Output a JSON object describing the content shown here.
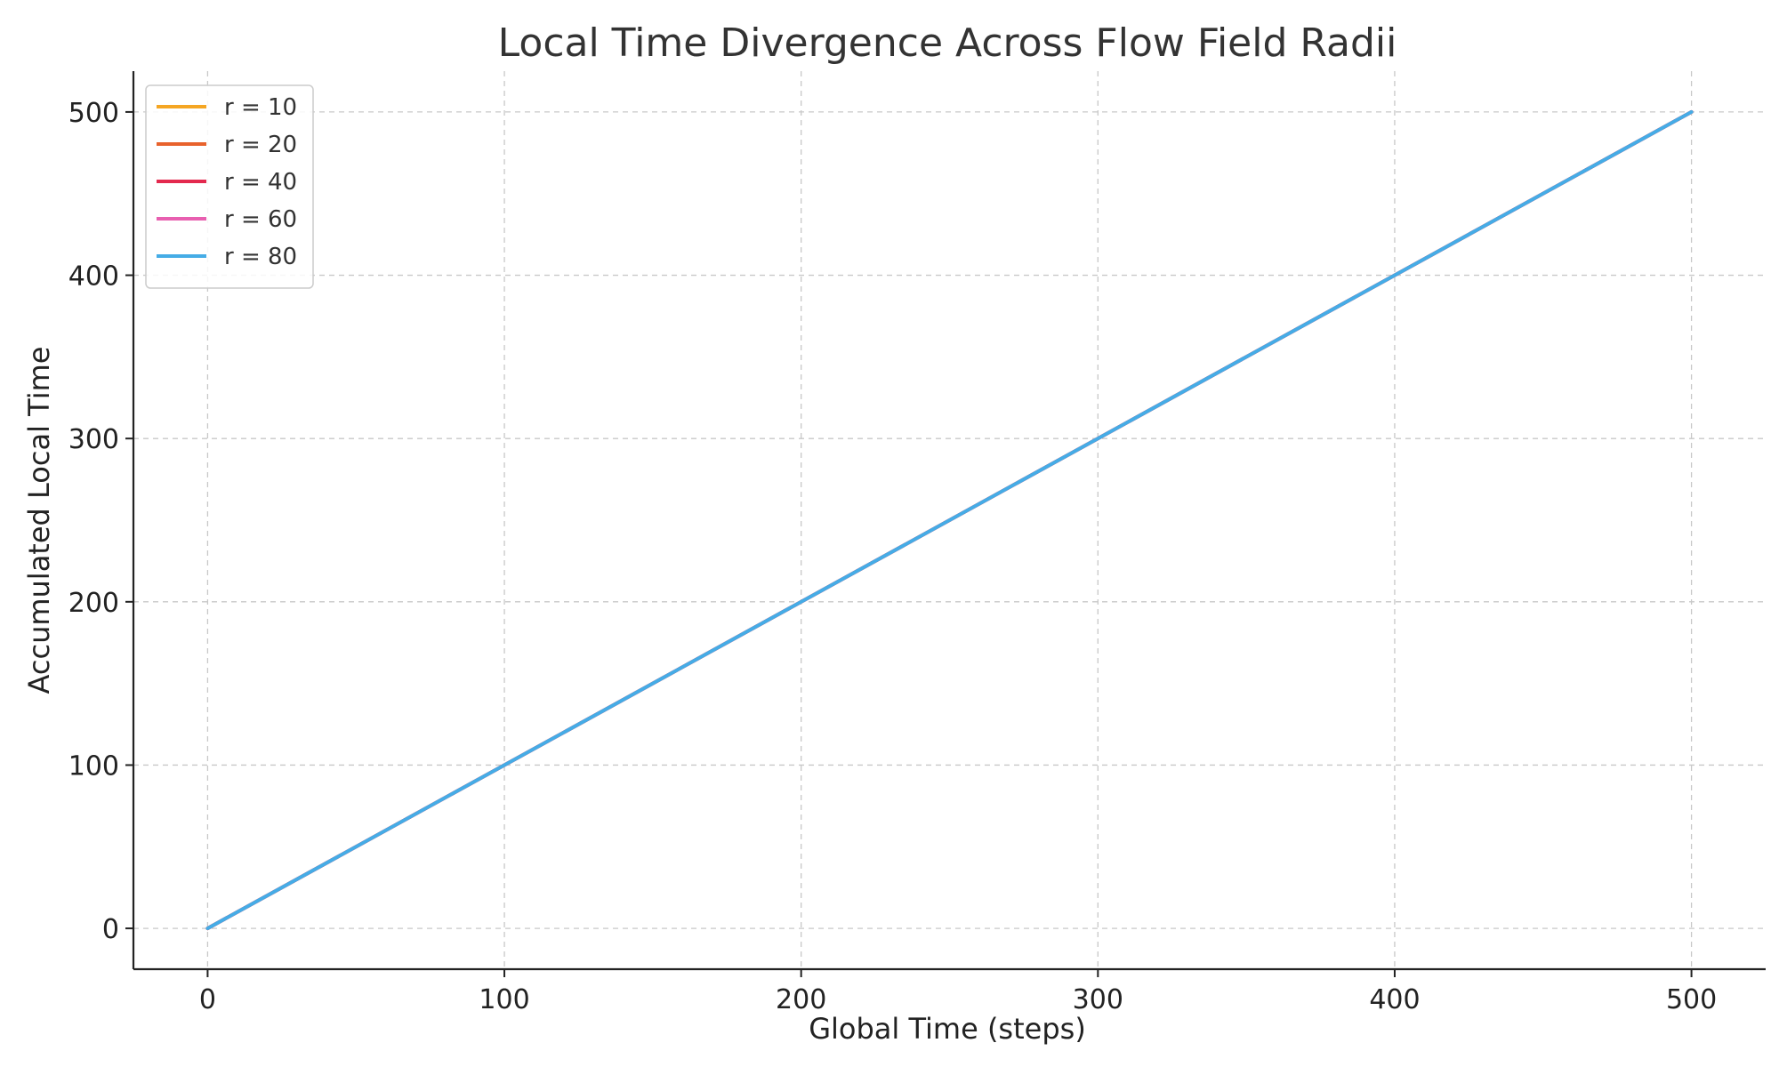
{
  "chart_data": {
    "type": "line",
    "title": "Local Time Divergence Across Flow Field Radii",
    "xlabel": "Global Time (steps)",
    "ylabel": "Accumulated Local Time",
    "xlim": [
      -25,
      525
    ],
    "ylim": [
      -25,
      525
    ],
    "xticks": [
      0,
      100,
      200,
      300,
      400,
      500
    ],
    "yticks": [
      0,
      100,
      200,
      300,
      400,
      500
    ],
    "grid": true,
    "legend_position": "top-left",
    "series": [
      {
        "name": "r = 10",
        "color": "#f5a623",
        "x": [
          0,
          500
        ],
        "y": [
          0,
          500
        ]
      },
      {
        "name": "r = 20",
        "color": "#e8622c",
        "x": [
          0,
          500
        ],
        "y": [
          0,
          500
        ]
      },
      {
        "name": "r = 40",
        "color": "#e3294e",
        "x": [
          0,
          500
        ],
        "y": [
          0,
          500
        ]
      },
      {
        "name": "r = 60",
        "color": "#e85fb0",
        "x": [
          0,
          500
        ],
        "y": [
          0,
          500
        ]
      },
      {
        "name": "r = 80",
        "color": "#45ace6",
        "x": [
          0,
          500
        ],
        "y": [
          0,
          500
        ]
      }
    ]
  }
}
